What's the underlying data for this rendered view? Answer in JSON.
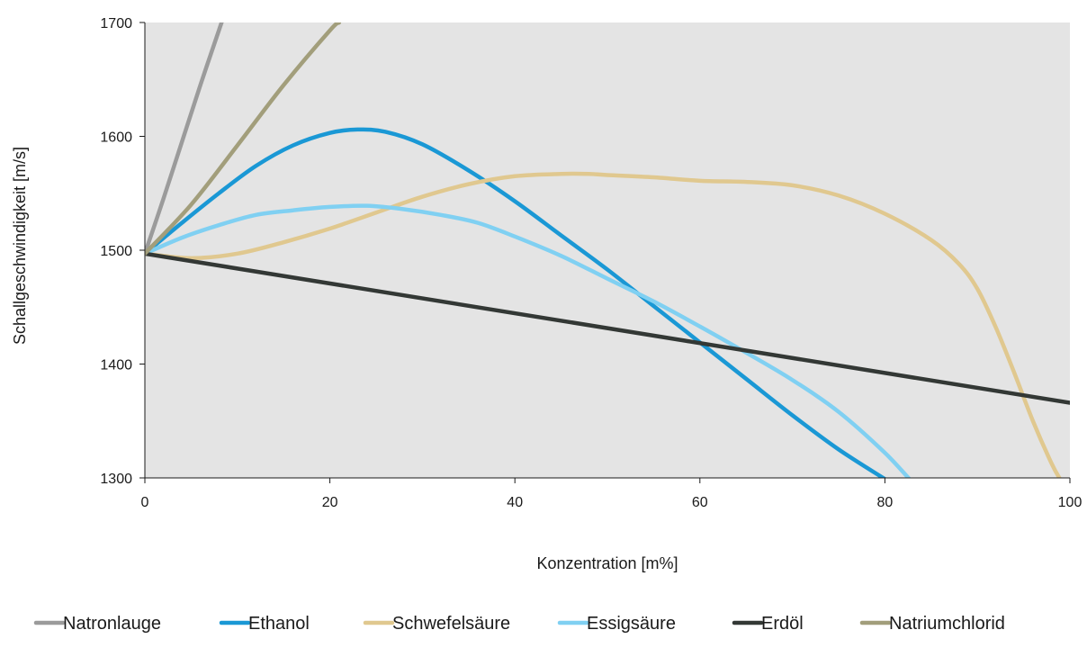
{
  "chart_data": {
    "type": "line",
    "title": "",
    "xlabel": "Konzentration  [m%]",
    "ylabel": "Schallgeschwindigkeit  [m/s]",
    "xlim": [
      0,
      100
    ],
    "ylim": [
      1300,
      1700
    ],
    "x_ticks": [
      0,
      20,
      40,
      60,
      80,
      100
    ],
    "y_ticks": [
      1300,
      1400,
      1500,
      1600,
      1700
    ],
    "x_tick_labels": [
      "0",
      "20",
      "40",
      "60",
      "80",
      "100"
    ],
    "y_tick_labels": [
      "1300",
      "1400",
      "1500",
      "1600",
      "1700"
    ],
    "grid": false,
    "legend_position": "bottom",
    "plot_background": "#e4e4e4",
    "series": [
      {
        "name": "Natronlauge",
        "color": "#9b9b9b",
        "x": [
          0,
          2,
          4,
          6,
          8,
          8.3
        ],
        "y": [
          1497,
          1545,
          1595,
          1645,
          1693,
          1700
        ]
      },
      {
        "name": "Ethanol",
        "color": "#1a98d5",
        "x": [
          0,
          4,
          8,
          12,
          16,
          20,
          23,
          26,
          30,
          35,
          40,
          45,
          50,
          55,
          60,
          65,
          70,
          75,
          80
        ],
        "y": [
          1497,
          1524,
          1550,
          1574,
          1592,
          1603,
          1606,
          1604,
          1593,
          1570,
          1543,
          1513,
          1483,
          1451,
          1419,
          1387,
          1355,
          1325,
          1299
        ]
      },
      {
        "name": "Schwefelsäure",
        "color": "#e0c88f",
        "x": [
          0,
          5,
          10,
          15,
          20,
          25,
          30,
          35,
          40,
          45,
          48,
          50,
          55,
          60,
          65,
          70,
          75,
          80,
          85,
          88,
          90,
          92,
          94,
          96,
          98,
          99
        ],
        "y": [
          1497,
          1493,
          1497,
          1507,
          1519,
          1533,
          1547,
          1558,
          1565,
          1567,
          1567,
          1566,
          1564,
          1561,
          1560,
          1557,
          1548,
          1532,
          1509,
          1488,
          1466,
          1432,
          1392,
          1350,
          1313,
          1298
        ]
      },
      {
        "name": "Essigsäure",
        "color": "#80d0f2",
        "x": [
          0,
          4,
          8,
          12,
          16,
          20,
          24,
          28,
          32,
          36,
          40,
          45,
          50,
          55,
          60,
          65,
          70,
          75,
          80,
          83,
          84
        ],
        "y": [
          1497,
          1511,
          1522,
          1531,
          1535,
          1538,
          1539,
          1536,
          1531,
          1524,
          1512,
          1495,
          1475,
          1455,
          1433,
          1410,
          1386,
          1358,
          1322,
          1296,
          1290
        ]
      },
      {
        "name": "Erdöl",
        "color": "#333835",
        "x": [
          0,
          100
        ],
        "y": [
          1497,
          1366
        ]
      },
      {
        "name": "Natriumchlorid",
        "color": "#a29e7b",
        "x": [
          0,
          5,
          10,
          15,
          20,
          21
        ],
        "y": [
          1497,
          1540,
          1592,
          1645,
          1693,
          1700
        ]
      }
    ]
  }
}
